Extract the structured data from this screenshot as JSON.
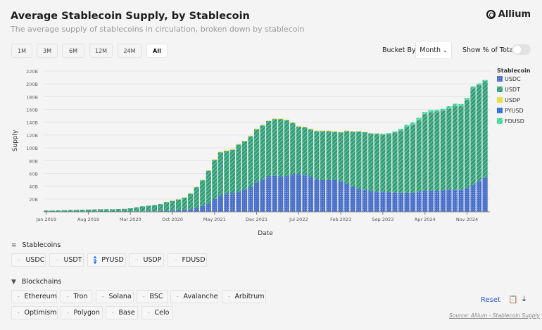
{
  "header": {
    "title": "Average Stablecoin Supply, by Stablecoin",
    "subtitle": "The average supply of stablecoins in circulation, broken down by stablecoin",
    "logo": "Allium"
  },
  "controls": {
    "ranges": [
      "1M",
      "3M",
      "6M",
      "12M",
      "24M",
      "All"
    ],
    "active_range": "All",
    "bucket_label": "Bucket By",
    "bucket_value": "Month",
    "show_pct_label": "Show % of Total",
    "show_pct_on": false
  },
  "filters": {
    "stablecoins_label": "Stablecoins",
    "stablecoins": [
      "USDC",
      "USDT",
      "PYUSD",
      "USDP",
      "FDUSD"
    ],
    "blockchains_label": "Blockchains",
    "blockchains": [
      "Ethereum",
      "Tron",
      "Solana",
      "BSC",
      "Avalanche",
      "Arbitrum",
      "Optimism",
      "Polygon",
      "Base",
      "Celo"
    ]
  },
  "footer": {
    "reset": "Reset",
    "source": "Source: Allium - Stablecoin Supply"
  },
  "colors": {
    "USDC": "#4a70c9",
    "USDT": "#2f9c76",
    "USDP": "#e7dd3a",
    "PYUSD": "#2f6de0",
    "FDUSD": "#2fd98e"
  },
  "chart_data": {
    "type": "bar",
    "stacked": true,
    "xlabel": "Date",
    "ylabel": "Supply",
    "ylim": [
      0,
      220
    ],
    "y_unit": "B",
    "y_ticks": [
      "20B",
      "40B",
      "60B",
      "80B",
      "100B",
      "120B",
      "140B",
      "160B",
      "180B",
      "200B",
      "220B"
    ],
    "x_ticks": [
      "Jan 2019",
      "Aug 2019",
      "Mar 2020",
      "Oct 2020",
      "May 2021",
      "Dec 2021",
      "Jul 2022",
      "Feb 2023",
      "Sep 2023",
      "Apr 2024",
      "Nov 2024"
    ],
    "x_start": "2019-01",
    "x_end": "2025-02",
    "bucket": "month",
    "legend_title": "Stablecoin",
    "legend_position": "right",
    "grid": true,
    "series": [
      {
        "name": "USDC",
        "values": [
          0.3,
          0.3,
          0.3,
          0.3,
          0.35,
          0.4,
          0.4,
          0.45,
          0.45,
          0.45,
          0.5,
          0.5,
          0.5,
          0.5,
          0.6,
          0.7,
          0.8,
          1,
          1,
          1.2,
          1.5,
          2,
          2.5,
          3,
          4,
          6,
          9,
          13,
          20,
          26,
          29,
          29.5,
          31.5,
          35,
          39,
          46,
          50,
          56,
          57,
          55,
          56,
          59,
          59,
          58,
          55,
          50.5,
          49.5,
          50,
          50,
          48,
          44,
          39,
          36,
          34.4,
          32.6,
          31.5,
          31.5,
          30.8,
          30,
          30,
          30,
          30.4,
          31.5,
          33.3,
          33.3,
          32.6,
          33.7,
          35,
          34.4,
          34.4,
          37,
          41.8,
          48,
          53.5
        ]
      },
      {
        "name": "USDT",
        "values": [
          1.7,
          1.7,
          1.9,
          2.2,
          2.45,
          2.6,
          2.9,
          3.05,
          3.25,
          3.45,
          3.5,
          3.5,
          3.8,
          4.1,
          4.9,
          6.3,
          7.7,
          8.5,
          9.5,
          10.8,
          13.9,
          15.4,
          16.8,
          19.2,
          24.5,
          32.4,
          40.3,
          51.2,
          61.1,
          67,
          66,
          67.5,
          73.5,
          75,
          79,
          83,
          85,
          86,
          88,
          90,
          87,
          80,
          74,
          74,
          74,
          75.5,
          76.6,
          76.1,
          75.1,
          76.2,
          82.2,
          86.3,
          89.4,
          90,
          89.5,
          89.85,
          88.7,
          90.1,
          93.25,
          96.9,
          102.6,
          105.6,
          111.7,
          119.2,
          122.3,
          123.6,
          124.2,
          126.6,
          130.9,
          130.8,
          138.1,
          151.6,
          150.3,
          149.8
        ]
      },
      {
        "name": "USDP",
        "values": [
          0,
          0,
          0,
          0,
          0,
          0,
          0,
          0,
          0,
          0,
          0,
          0,
          0,
          0,
          0,
          0,
          0,
          0,
          0,
          0,
          0.1,
          0.1,
          0.2,
          0.3,
          0.5,
          0.6,
          0.7,
          0.8,
          0.9,
          1,
          1,
          1,
          1,
          1,
          1,
          1,
          1,
          1,
          1,
          1,
          1,
          1,
          1,
          1,
          1,
          1,
          0.9,
          0.9,
          0.9,
          0.8,
          0.8,
          0.7,
          0.6,
          0.6,
          0.6,
          0.5,
          0.5,
          0.5,
          0.4,
          0.4,
          0.3,
          0.3,
          0.3,
          0.2,
          0.2,
          0.2,
          0.2,
          0.2,
          0.2,
          0.2,
          0.1,
          0.1,
          0.1,
          0.1
        ]
      },
      {
        "name": "PYUSD",
        "values": [
          0,
          0,
          0,
          0,
          0,
          0,
          0,
          0,
          0,
          0,
          0,
          0,
          0,
          0,
          0,
          0,
          0,
          0,
          0,
          0,
          0,
          0,
          0,
          0,
          0,
          0,
          0,
          0,
          0,
          0,
          0,
          0,
          0,
          0,
          0,
          0,
          0,
          0,
          0,
          0,
          0,
          0,
          0,
          0,
          0,
          0,
          0,
          0,
          0,
          0,
          0,
          0,
          0,
          0,
          0,
          0.05,
          0.1,
          0.1,
          0.15,
          0.2,
          0.3,
          0.3,
          0.3,
          0.3,
          0.4,
          0.4,
          0.4,
          0.6,
          0.7,
          0.6,
          0.5,
          0.5,
          0.5,
          0.6
        ]
      },
      {
        "name": "FDUSD",
        "values": [
          0,
          0,
          0,
          0,
          0,
          0,
          0,
          0,
          0,
          0,
          0,
          0,
          0,
          0,
          0,
          0,
          0,
          0,
          0,
          0,
          0,
          0,
          0,
          0,
          0,
          0,
          0,
          0,
          0,
          0,
          0,
          0,
          0,
          0,
          0,
          0,
          0,
          0,
          0,
          0,
          0,
          0,
          0,
          0,
          0,
          0,
          0,
          0,
          0,
          0,
          0,
          0,
          0,
          0,
          0.3,
          0.8,
          1.2,
          1.5,
          1.8,
          2.2,
          2.8,
          3,
          3.2,
          3,
          2.8,
          2.5,
          2.5,
          2.6,
          2.8,
          2.5,
          2.3,
          2,
          1.8,
          2
        ]
      }
    ]
  }
}
